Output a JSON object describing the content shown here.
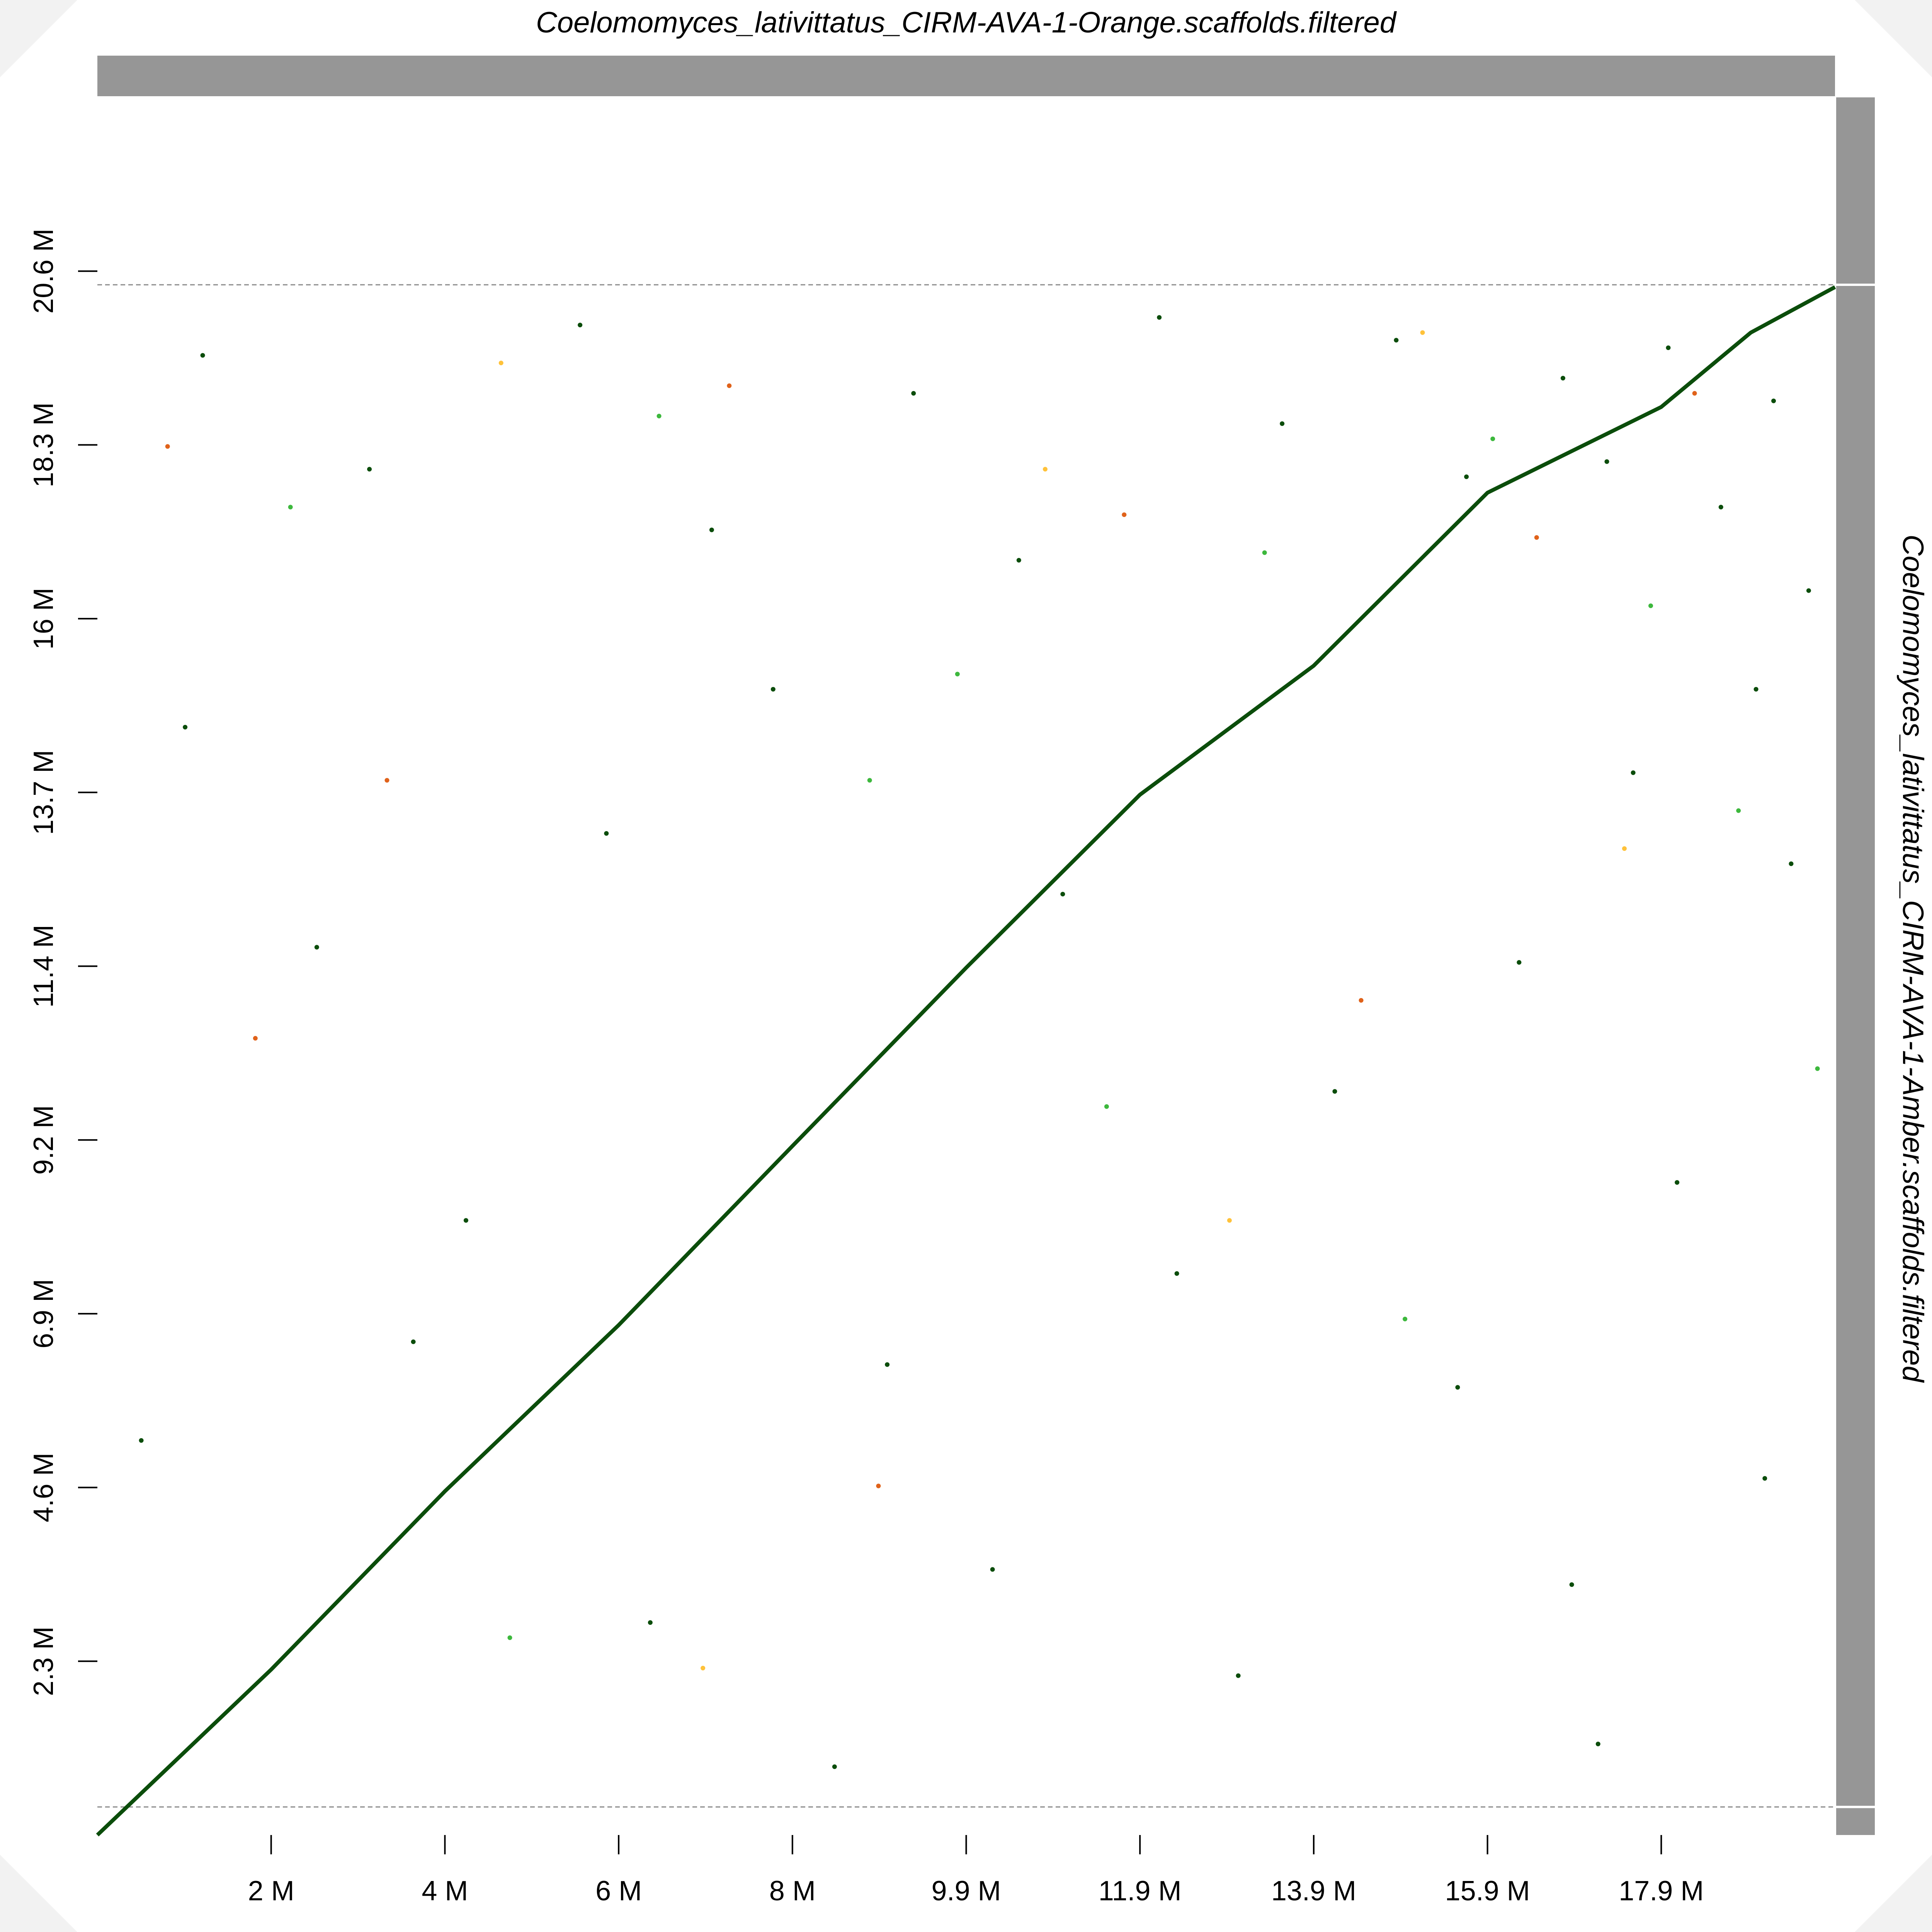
{
  "chart_data": {
    "type": "scatter",
    "title": "Coelomomyces_lativittatus_CIRM-AVA-1-Orange.scaffolds.filtered",
    "y_title": "Coelomomyces_lativittatus_CIRM-AVA-1-Amber.scaffolds.filtered",
    "xlim": [
      0,
      19.8
    ],
    "ylim": [
      0,
      22.9
    ],
    "xticks": [
      {
        "value": 1.98,
        "label": "2 M"
      },
      {
        "value": 3.96,
        "label": "4 M"
      },
      {
        "value": 5.94,
        "label": "6 M"
      },
      {
        "value": 7.92,
        "label": "8 M"
      },
      {
        "value": 9.9,
        "label": "9.9 M"
      },
      {
        "value": 11.88,
        "label": "11.9 M"
      },
      {
        "value": 13.86,
        "label": "13.9 M"
      },
      {
        "value": 15.84,
        "label": "15.9 M"
      },
      {
        "value": 17.82,
        "label": "17.9 M"
      }
    ],
    "yticks": [
      {
        "value": 2.29,
        "label": "2.3 M"
      },
      {
        "value": 4.58,
        "label": "4.6 M"
      },
      {
        "value": 6.87,
        "label": "6.9 M"
      },
      {
        "value": 9.16,
        "label": "9.2 M"
      },
      {
        "value": 11.45,
        "label": "11.4 M"
      },
      {
        "value": 13.74,
        "label": "13.7 M"
      },
      {
        "value": 16.03,
        "label": "16 M"
      },
      {
        "value": 18.32,
        "label": "18.3 M"
      },
      {
        "value": 20.61,
        "label": "20.6 M"
      }
    ],
    "y_boundaries": [
      0.37,
      20.43
    ],
    "alignment": {
      "color": "#0b4d0b",
      "x": [
        0,
        1.98,
        3.96,
        5.94,
        7.92,
        9.9,
        11.88,
        13.86,
        15.84,
        17.82,
        18.84,
        19.8
      ],
      "y": [
        0,
        2.18,
        4.53,
        6.72,
        9.08,
        11.43,
        13.71,
        15.41,
        17.69,
        18.82,
        19.8,
        20.4
      ]
    },
    "point_groups": [
      {
        "color": "#0b4d0b",
        "x": [
          1.2,
          3.1,
          5.5,
          7.0,
          9.3,
          10.5,
          12.1,
          13.5,
          14.8,
          15.6,
          16.7,
          17.2,
          17.9,
          18.5,
          19.1,
          19.5,
          18.9,
          17.5,
          19.3,
          16.2,
          14.1,
          18.0,
          12.3,
          15.5,
          19.0,
          10.2,
          13.0,
          17.1,
          8.4,
          6.3,
          4.2,
          2.5,
          1.0,
          3.6,
          5.8,
          7.7,
          0.5,
          11.0,
          9.0,
          16.8
        ],
        "y": [
          19.5,
          18.0,
          19.9,
          17.2,
          19.0,
          16.8,
          20.0,
          18.6,
          19.7,
          17.9,
          19.2,
          18.1,
          19.6,
          17.5,
          18.9,
          16.4,
          15.1,
          14.0,
          12.8,
          11.5,
          9.8,
          8.6,
          7.4,
          5.9,
          4.7,
          3.5,
          2.1,
          1.2,
          0.9,
          2.8,
          8.1,
          11.7,
          14.6,
          6.5,
          13.2,
          15.1,
          5.2,
          12.4,
          6.2,
          3.3
        ]
      },
      {
        "color": "#3db83d",
        "x": [
          2.2,
          6.4,
          9.8,
          13.3,
          15.9,
          17.7,
          18.7,
          11.5,
          14.9,
          4.7,
          8.8,
          19.6
        ],
        "y": [
          17.5,
          18.7,
          15.3,
          16.9,
          18.4,
          16.2,
          13.5,
          9.6,
          6.8,
          2.6,
          13.9,
          10.1
        ]
      },
      {
        "color": "#e0621a",
        "x": [
          0.8,
          3.3,
          7.2,
          11.7,
          16.4,
          18.2,
          14.4,
          8.9,
          1.8
        ],
        "y": [
          18.3,
          13.9,
          19.1,
          17.4,
          17.1,
          19.0,
          11.0,
          4.6,
          10.5
        ]
      },
      {
        "color": "#ffc23a",
        "x": [
          4.6,
          10.8,
          15.1,
          17.4,
          12.9,
          6.9
        ],
        "y": [
          19.4,
          18.0,
          19.8,
          13.0,
          8.1,
          2.2
        ]
      }
    ]
  }
}
